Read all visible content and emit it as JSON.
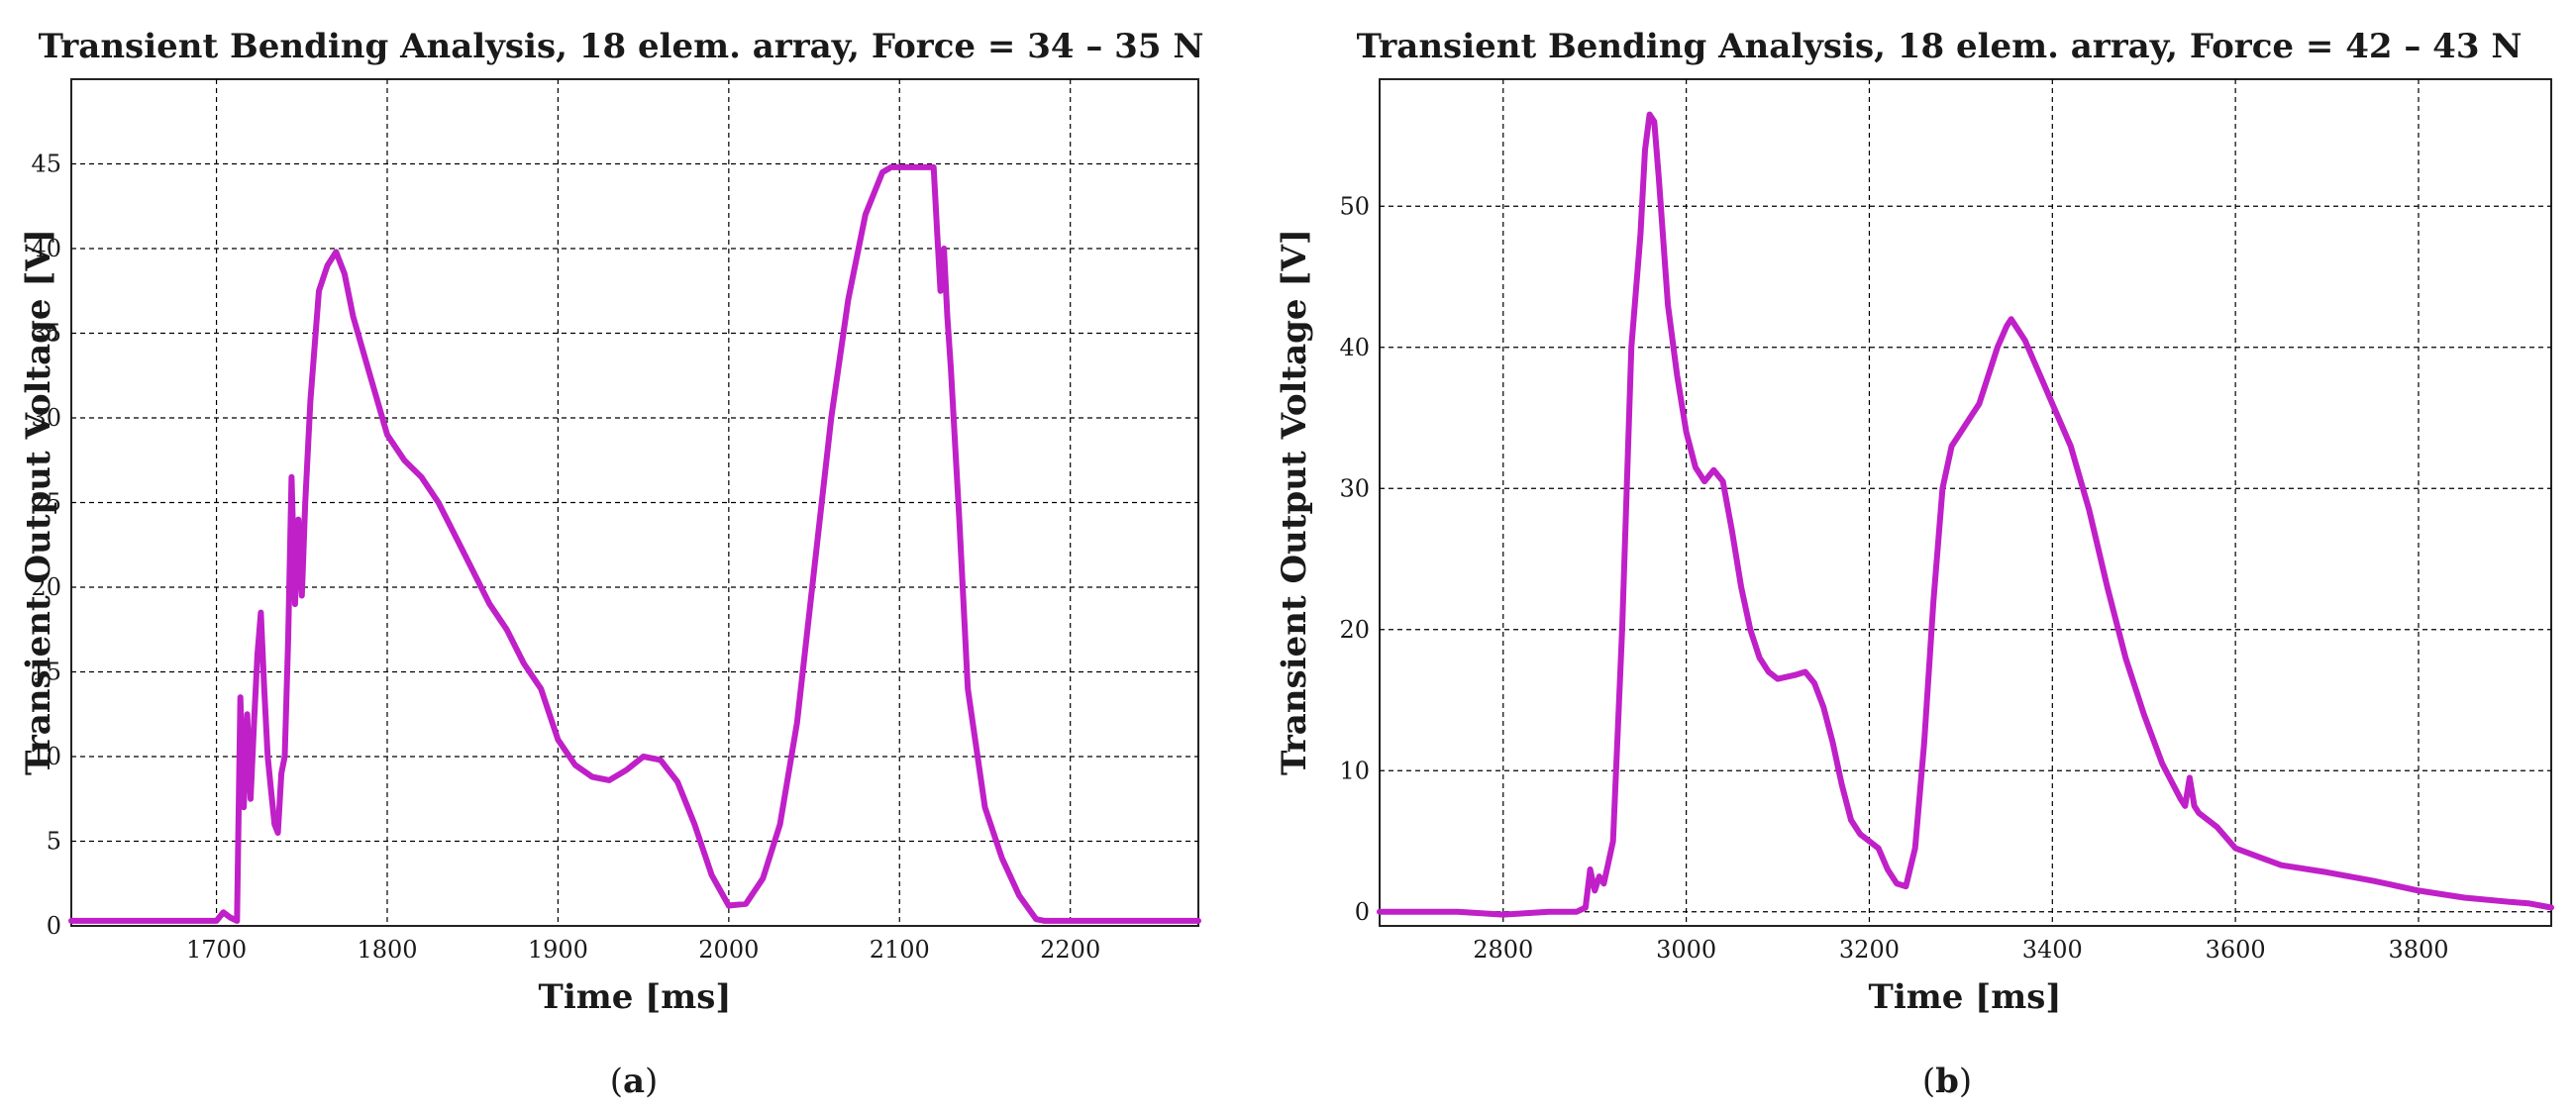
{
  "chart_data": [
    {
      "type": "line",
      "title": "Transient Bending Analysis, 18 elem. array, Force = 34 – 35 N",
      "xlabel": "Time [ms]",
      "ylabel": "Transient Output Voltage [V]",
      "panel_label": "a",
      "xlim": [
        1615,
        2275
      ],
      "ylim": [
        0,
        50
      ],
      "xticks": [
        1700,
        1800,
        1900,
        2000,
        2100,
        2200
      ],
      "yticks": [
        0,
        5,
        10,
        15,
        20,
        25,
        30,
        35,
        40,
        45
      ],
      "grid": true,
      "color": "#c020c8",
      "series": [
        {
          "x": [
            1615,
            1700,
            1704,
            1708,
            1712,
            1714,
            1716,
            1718,
            1720,
            1722,
            1724,
            1726,
            1728,
            1730,
            1732,
            1734,
            1736,
            1738,
            1740,
            1742,
            1744,
            1746,
            1748,
            1750,
            1752,
            1755,
            1760,
            1765,
            1770,
            1775,
            1780,
            1790,
            1800,
            1810,
            1820,
            1830,
            1840,
            1850,
            1860,
            1870,
            1880,
            1890,
            1900,
            1910,
            1920,
            1930,
            1940,
            1950,
            1960,
            1970,
            1980,
            1990,
            2000,
            2010,
            2020,
            2030,
            2040,
            2050,
            2060,
            2070,
            2080,
            2090,
            2095,
            2100,
            2110,
            2120,
            2122,
            2124,
            2126,
            2128,
            2130,
            2135,
            2140,
            2150,
            2160,
            2170,
            2180,
            2185,
            2190,
            2200,
            2275
          ],
          "y": [
            0.3,
            0.3,
            0.8,
            0.5,
            0.3,
            13.5,
            7,
            12.5,
            7.5,
            12,
            16,
            18.5,
            14,
            10,
            8,
            6,
            5.5,
            9,
            10,
            17,
            26.5,
            19,
            24,
            19.5,
            25,
            31,
            37.5,
            39,
            39.8,
            38.5,
            36,
            32.5,
            29,
            27.5,
            26.5,
            25,
            23,
            21,
            19,
            17.5,
            15.5,
            14,
            11,
            9.5,
            8.8,
            8.6,
            9.2,
            10,
            9.8,
            8.5,
            6,
            3,
            1.2,
            1.3,
            2.8,
            6,
            12,
            21,
            30,
            37,
            42,
            44.5,
            44.8,
            44.8,
            44.8,
            44.8,
            41,
            37.5,
            40,
            36,
            33,
            24,
            14,
            7,
            4,
            1.8,
            0.4,
            0.3,
            0.3,
            0.3,
            0.3
          ]
        }
      ]
    },
    {
      "type": "line",
      "title": "Transient Bending Analysis, 18 elem. array, Force = 42 – 43 N",
      "xlabel": "Time [ms]",
      "ylabel": "Transient Output Voltage [V]",
      "panel_label": "b",
      "xlim": [
        2665,
        3945
      ],
      "ylim": [
        -1,
        59
      ],
      "xticks": [
        2800,
        3000,
        3200,
        3400,
        3600,
        3800
      ],
      "yticks": [
        0,
        10,
        20,
        30,
        40,
        50
      ],
      "grid": true,
      "color": "#c020c8",
      "series": [
        {
          "x": [
            2665,
            2700,
            2750,
            2800,
            2850,
            2880,
            2890,
            2895,
            2900,
            2905,
            2910,
            2920,
            2930,
            2940,
            2950,
            2955,
            2960,
            2965,
            2970,
            2980,
            2990,
            3000,
            3010,
            3020,
            3030,
            3040,
            3050,
            3060,
            3070,
            3080,
            3090,
            3100,
            3120,
            3130,
            3140,
            3150,
            3160,
            3170,
            3180,
            3190,
            3200,
            3210,
            3220,
            3230,
            3240,
            3250,
            3260,
            3270,
            3280,
            3290,
            3300,
            3310,
            3320,
            3330,
            3340,
            3350,
            3355,
            3360,
            3370,
            3380,
            3390,
            3400,
            3420,
            3440,
            3460,
            3480,
            3500,
            3520,
            3540,
            3545,
            3550,
            3555,
            3560,
            3580,
            3600,
            3650,
            3700,
            3750,
            3800,
            3850,
            3900,
            3920,
            3945
          ],
          "y": [
            0,
            0,
            0,
            -0.2,
            0,
            0,
            0.3,
            3,
            1.5,
            2.5,
            2,
            5,
            20,
            40,
            48,
            54,
            56.5,
            56,
            52,
            43,
            38,
            34,
            31.5,
            30.5,
            31.3,
            30.5,
            27,
            23,
            20,
            18,
            17,
            16.5,
            16.8,
            17,
            16.2,
            14.5,
            12,
            9,
            6.5,
            5.5,
            5,
            4.5,
            3,
            2,
            1.8,
            4.5,
            12,
            22,
            30,
            33,
            34,
            35,
            36,
            38,
            40,
            41.5,
            42,
            41.5,
            40.5,
            39,
            37.5,
            36,
            33,
            28.5,
            23,
            18,
            14,
            10.5,
            8,
            7.5,
            9.5,
            7.5,
            7,
            6,
            4.5,
            3.3,
            2.8,
            2.2,
            1.5,
            1,
            0.7,
            0.6,
            0.3
          ]
        }
      ]
    }
  ]
}
